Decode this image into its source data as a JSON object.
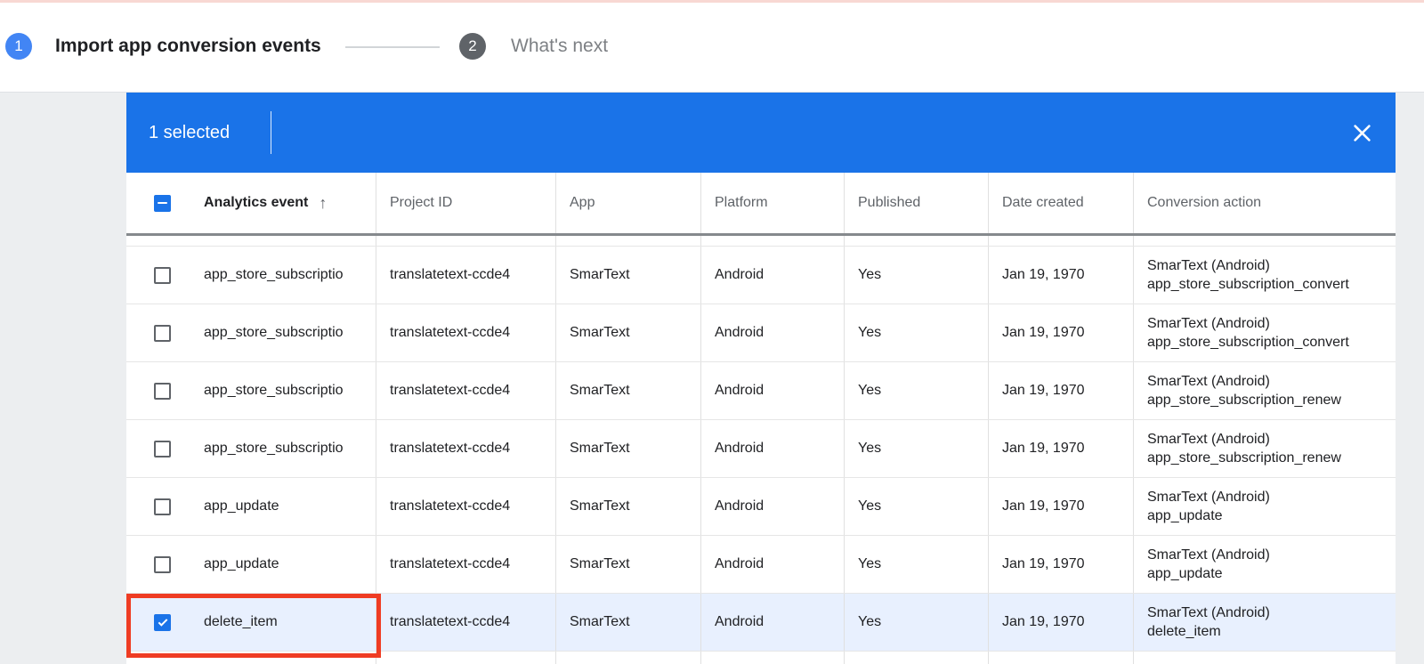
{
  "stepper": {
    "step1_number": "1",
    "step1_label": "Import app conversion events",
    "step2_number": "2",
    "step2_label": "What's next"
  },
  "toolbar": {
    "selected_text": "1 selected",
    "close_icon": "close-icon"
  },
  "table": {
    "columns": [
      "Analytics event",
      "Project ID",
      "App",
      "Platform",
      "Published",
      "Date created",
      "Conversion action"
    ],
    "sort": {
      "column": "Analytics event",
      "direction": "ascending",
      "arrow": "↑"
    },
    "select_all_state": "indeterminate",
    "rows": [
      {
        "checked": false,
        "selected": false,
        "event": "app_store_subscriptio",
        "project_id": "translatetext-ccde4",
        "app": "SmarText",
        "platform": "Android",
        "published": "Yes",
        "date_created": "Jan 19, 1970",
        "conversion_line1": "SmarText (Android)",
        "conversion_line2": "app_store_subscription_convert"
      },
      {
        "checked": false,
        "selected": false,
        "event": "app_store_subscriptio",
        "project_id": "translatetext-ccde4",
        "app": "SmarText",
        "platform": "Android",
        "published": "Yes",
        "date_created": "Jan 19, 1970",
        "conversion_line1": "SmarText (Android)",
        "conversion_line2": "app_store_subscription_convert"
      },
      {
        "checked": false,
        "selected": false,
        "event": "app_store_subscriptio",
        "project_id": "translatetext-ccde4",
        "app": "SmarText",
        "platform": "Android",
        "published": "Yes",
        "date_created": "Jan 19, 1970",
        "conversion_line1": "SmarText (Android)",
        "conversion_line2": "app_store_subscription_renew"
      },
      {
        "checked": false,
        "selected": false,
        "event": "app_store_subscriptio",
        "project_id": "translatetext-ccde4",
        "app": "SmarText",
        "platform": "Android",
        "published": "Yes",
        "date_created": "Jan 19, 1970",
        "conversion_line1": "SmarText (Android)",
        "conversion_line2": "app_store_subscription_renew"
      },
      {
        "checked": false,
        "selected": false,
        "event": "app_update",
        "project_id": "translatetext-ccde4",
        "app": "SmarText",
        "platform": "Android",
        "published": "Yes",
        "date_created": "Jan 19, 1970",
        "conversion_line1": "SmarText (Android)",
        "conversion_line2": "app_update"
      },
      {
        "checked": false,
        "selected": false,
        "event": "app_update",
        "project_id": "translatetext-ccde4",
        "app": "SmarText",
        "platform": "Android",
        "published": "Yes",
        "date_created": "Jan 19, 1970",
        "conversion_line1": "SmarText (Android)",
        "conversion_line2": "app_update"
      },
      {
        "checked": true,
        "selected": true,
        "event": "delete_item",
        "project_id": "translatetext-ccde4",
        "app": "SmarText",
        "platform": "Android",
        "published": "Yes",
        "date_created": "Jan 19, 1970",
        "conversion_line1": "SmarText (Android)",
        "conversion_line2": "delete_item"
      }
    ]
  },
  "colors": {
    "toolbar_blue": "#1a73e8",
    "checkbox_blue": "#1a73e8",
    "selected_row_background": "#e8f0fe",
    "annotation_red": "#ef3c23",
    "step1_circle_blue": "#4285f4",
    "step2_circle_gray": "#5f6368"
  }
}
